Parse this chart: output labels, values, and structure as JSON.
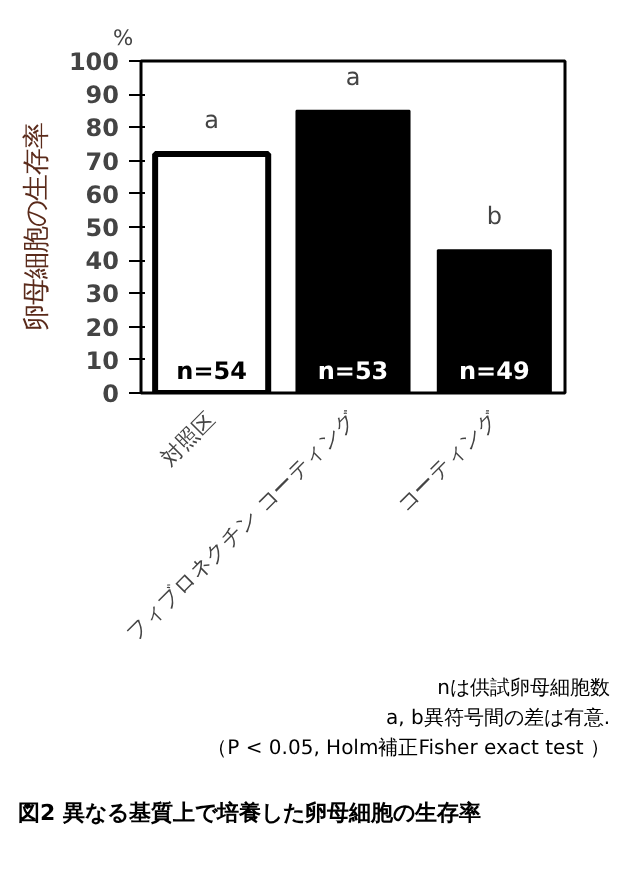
{
  "chart_data": {
    "type": "bar",
    "title": "図2  異なる基質上で培養した卵母細胞の生存率",
    "ylabel": "卵母細胞の生存率",
    "categories": [
      "対照区",
      "フィブロネクチン コーティング",
      "コーティング"
    ],
    "values": [
      72,
      85,
      43
    ],
    "colors": [
      "#ffffff",
      "#000000",
      "#000000"
    ],
    "ylim": [
      0,
      100
    ],
    "yticks": [
      0,
      10,
      20,
      30,
      40,
      50,
      60,
      70,
      80,
      90,
      100
    ],
    "grid": false,
    "annotations": [
      "a",
      "a",
      "b",
      "n=54",
      "n=53",
      "n=49",
      "%",
      "nは供試卵母細胞数",
      "a, b異符号間の差は有意.",
      "（P < 0.05, Holm補正Fisher exact test ）"
    ]
  }
}
